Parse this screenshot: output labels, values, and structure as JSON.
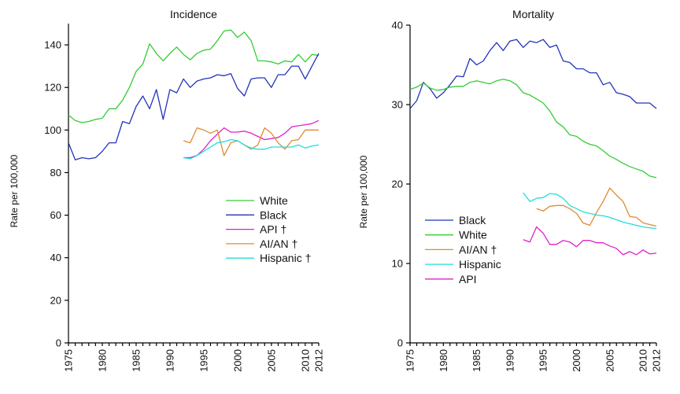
{
  "chart_data": [
    {
      "type": "line",
      "title": "Incidence",
      "xlabel": "",
      "ylabel": "Rate per 100,000",
      "xlim": [
        1975,
        2012
      ],
      "ylim": [
        0,
        150
      ],
      "yticks": [
        0,
        20,
        40,
        60,
        80,
        100,
        120,
        140
      ],
      "xticks": [
        1975,
        1980,
        1985,
        1990,
        1995,
        2000,
        2005,
        2010,
        2012
      ],
      "grid": false,
      "legend_position": "lower-right",
      "series": [
        {
          "name": "White",
          "color": "#33cc33",
          "x": [
            1975,
            1976,
            1977,
            1978,
            1979,
            1980,
            1981,
            1982,
            1983,
            1984,
            1985,
            1986,
            1987,
            1988,
            1989,
            1990,
            1991,
            1992,
            1993,
            1994,
            1995,
            1996,
            1997,
            1998,
            1999,
            2000,
            2001,
            2002,
            2003,
            2004,
            2005,
            2006,
            2007,
            2008,
            2009,
            2010,
            2011,
            2012
          ],
          "y": [
            107,
            104.5,
            103.5,
            104,
            105,
            105.5,
            110,
            110,
            114,
            120,
            127.5,
            131,
            140.5,
            136,
            132.5,
            136,
            139,
            135.5,
            133,
            136,
            137.5,
            138,
            142,
            146.5,
            147,
            143.5,
            146,
            142,
            132.5,
            132.5,
            132,
            131,
            132.5,
            132,
            135.5,
            132,
            135.5,
            135
          ]
        },
        {
          "name": "Black",
          "color": "#2233bb",
          "x": [
            1975,
            1976,
            1977,
            1978,
            1979,
            1980,
            1981,
            1982,
            1983,
            1984,
            1985,
            1986,
            1987,
            1988,
            1989,
            1990,
            1991,
            1992,
            1993,
            1994,
            1995,
            1996,
            1997,
            1998,
            1999,
            2000,
            2001,
            2002,
            2003,
            2004,
            2005,
            2006,
            2007,
            2008,
            2009,
            2010,
            2011,
            2012
          ],
          "y": [
            94,
            86,
            87,
            86.5,
            87,
            90,
            94,
            94,
            104,
            103,
            111,
            116,
            110,
            119,
            105,
            119,
            117.5,
            124,
            120,
            123,
            124,
            124.5,
            126,
            125.5,
            126.5,
            119.5,
            116,
            124,
            124.5,
            124.5,
            120,
            126,
            126,
            130,
            130,
            124,
            130,
            136
          ]
        },
        {
          "name": "API †",
          "color": "#dd22cc",
          "x": [
            1992,
            1993,
            1994,
            1995,
            1996,
            1997,
            1998,
            1999,
            2000,
            2001,
            2002,
            2003,
            2004,
            2005,
            2006,
            2007,
            2008,
            2009,
            2010,
            2011,
            2012
          ],
          "y": [
            87,
            87,
            88,
            91,
            95,
            98,
            101,
            99,
            99,
            99.5,
            98.5,
            97,
            95.5,
            96,
            96.5,
            98.5,
            101.5,
            102,
            102.5,
            103,
            104.5
          ]
        },
        {
          "name": "AI/AN †",
          "color": "#e08a33",
          "x": [
            1992,
            1993,
            1994,
            1995,
            1996,
            1997,
            1998,
            1999,
            2000,
            2001,
            2002,
            2003,
            2004,
            2005,
            2006,
            2007,
            2008,
            2009,
            2010,
            2011,
            2012
          ],
          "y": [
            95,
            94,
            101,
            100,
            98.5,
            100,
            88,
            94,
            95,
            93,
            91,
            93,
            101,
            98.5,
            94,
            91,
            95,
            95.5,
            100,
            100,
            100
          ]
        },
        {
          "name": "Hispanic †",
          "color": "#22dddd",
          "x": [
            1992,
            1993,
            1994,
            1995,
            1996,
            1997,
            1998,
            1999,
            2000,
            2001,
            2002,
            2003,
            2004,
            2005,
            2006,
            2007,
            2008,
            2009,
            2010,
            2011,
            2012
          ],
          "y": [
            87,
            86.5,
            88,
            90,
            92,
            94,
            94.5,
            95.5,
            95,
            93,
            91.5,
            91,
            91,
            92,
            92,
            92,
            92,
            93,
            91.5,
            92.5,
            93
          ]
        }
      ]
    },
    {
      "type": "line",
      "title": "Mortality",
      "xlabel": "",
      "ylabel": "Rate per 100,000",
      "xlim": [
        1975,
        2012
      ],
      "ylim": [
        0,
        40
      ],
      "yticks": [
        0,
        10,
        20,
        30,
        40
      ],
      "xticks": [
        1975,
        1980,
        1985,
        1990,
        1995,
        2000,
        2005,
        2010,
        2012
      ],
      "grid": false,
      "legend_position": "lower-left",
      "series": [
        {
          "name": "Black",
          "color": "#2233bb",
          "x": [
            1975,
            1976,
            1977,
            1978,
            1979,
            1980,
            1981,
            1982,
            1983,
            1984,
            1985,
            1986,
            1987,
            1988,
            1989,
            1990,
            1991,
            1992,
            1993,
            1994,
            1995,
            1996,
            1997,
            1998,
            1999,
            2000,
            2001,
            2002,
            2003,
            2004,
            2005,
            2006,
            2007,
            2008,
            2009,
            2010,
            2011,
            2012
          ],
          "y": [
            29.5,
            30.5,
            32.8,
            32,
            30.8,
            31.5,
            32.5,
            33.6,
            33.5,
            35.8,
            35,
            35.5,
            36.8,
            37.8,
            36.8,
            38,
            38.2,
            37.2,
            38,
            37.8,
            38.2,
            37.2,
            37.5,
            35.5,
            35.3,
            34.5,
            34.5,
            34,
            34,
            32.5,
            32.8,
            31.5,
            31.3,
            31,
            30.2,
            30.2,
            30.2,
            29.5
          ]
        },
        {
          "name": "White",
          "color": "#33cc33",
          "x": [
            1975,
            1976,
            1977,
            1978,
            1979,
            1980,
            1981,
            1982,
            1983,
            1984,
            1985,
            1986,
            1987,
            1988,
            1989,
            1990,
            1991,
            1992,
            1993,
            1994,
            1995,
            1996,
            1997,
            1998,
            1999,
            2000,
            2001,
            2002,
            2003,
            2004,
            2005,
            2006,
            2007,
            2008,
            2009,
            2010,
            2011,
            2012
          ],
          "y": [
            31.9,
            32.2,
            32.7,
            32.1,
            31.8,
            31.9,
            32.2,
            32.3,
            32.3,
            32.8,
            33,
            32.8,
            32.6,
            33,
            33.2,
            33,
            32.5,
            31.5,
            31.2,
            30.7,
            30.2,
            29.2,
            27.8,
            27.2,
            26.2,
            26,
            25.4,
            25,
            24.8,
            24.2,
            23.5,
            23.1,
            22.6,
            22.2,
            21.9,
            21.6,
            21,
            20.8
          ]
        },
        {
          "name": "AI/AN †",
          "color": "#e08a33",
          "x": [
            1994,
            1995,
            1996,
            1997,
            1998,
            1999,
            2000,
            2001,
            2002,
            2003,
            2004,
            2005,
            2006,
            2007,
            2008,
            2009,
            2010,
            2011,
            2012
          ],
          "y": [
            16.9,
            16.6,
            17.2,
            17.3,
            17.3,
            16.9,
            16.3,
            15.1,
            14.8,
            16.4,
            17.8,
            19.5,
            18.6,
            17.8,
            15.9,
            15.8,
            15.1,
            14.9,
            14.7
          ]
        },
        {
          "name": "Hispanic",
          "color": "#22dddd",
          "x": [
            1992,
            1993,
            1994,
            1995,
            1996,
            1997,
            1998,
            1999,
            2000,
            2001,
            2002,
            2003,
            2004,
            2005,
            2006,
            2007,
            2008,
            2009,
            2010,
            2011,
            2012
          ],
          "y": [
            18.9,
            17.8,
            18.2,
            18.3,
            18.8,
            18.7,
            18.2,
            17.3,
            16.9,
            16.5,
            16.3,
            16.1,
            16,
            15.8,
            15.5,
            15.2,
            15,
            14.8,
            14.6,
            14.5,
            14.4
          ]
        },
        {
          "name": "API",
          "color": "#dd22cc",
          "x": [
            1992,
            1993,
            1994,
            1995,
            1996,
            1997,
            1998,
            1999,
            2000,
            2001,
            2002,
            2003,
            2004,
            2005,
            2006,
            2007,
            2008,
            2009,
            2010,
            2011,
            2012
          ],
          "y": [
            13,
            12.7,
            14.6,
            13.8,
            12.4,
            12.4,
            12.9,
            12.7,
            12.1,
            12.9,
            12.9,
            12.6,
            12.6,
            12.2,
            11.9,
            11.1,
            11.5,
            11.1,
            11.7,
            11.2,
            11.3
          ]
        }
      ]
    }
  ]
}
